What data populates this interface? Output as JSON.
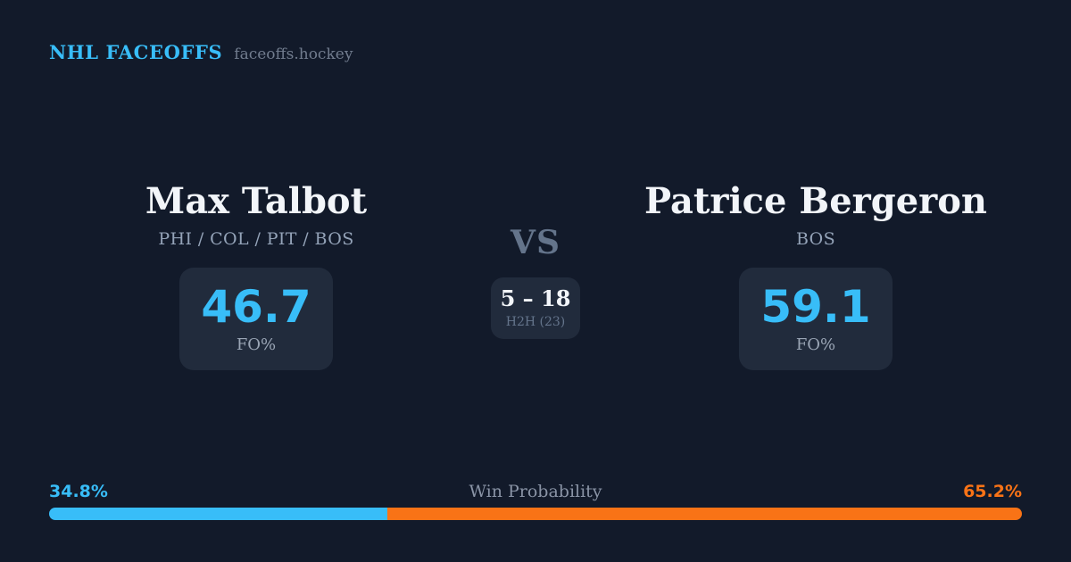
{
  "header": {
    "brand": "NHL FACEOFFS",
    "site_domain": "faceoffs.hockey"
  },
  "players": {
    "left": {
      "name": "Max Talbot",
      "teams": "PHI / COL / PIT / BOS",
      "fo_pct": "46.7",
      "stat_label": "FO%"
    },
    "right": {
      "name": "Patrice Bergeron",
      "teams": "BOS",
      "fo_pct": "59.1",
      "stat_label": "FO%"
    }
  },
  "center": {
    "vs_label": "VS",
    "h2h_score": "5 – 18",
    "h2h_sample": "H2H (23)"
  },
  "win_probability": {
    "title": "Win Probability",
    "left_label": "34.8%",
    "right_label": "65.2%",
    "left_pct": 34.8,
    "right_pct": 65.2
  },
  "colors": {
    "background": "#121a2a",
    "card": "#212b3c",
    "accent_blue": "#38bdf8",
    "accent_orange": "#f97316",
    "text_primary": "#f2f5f9",
    "text_muted": "#94a3b8"
  }
}
